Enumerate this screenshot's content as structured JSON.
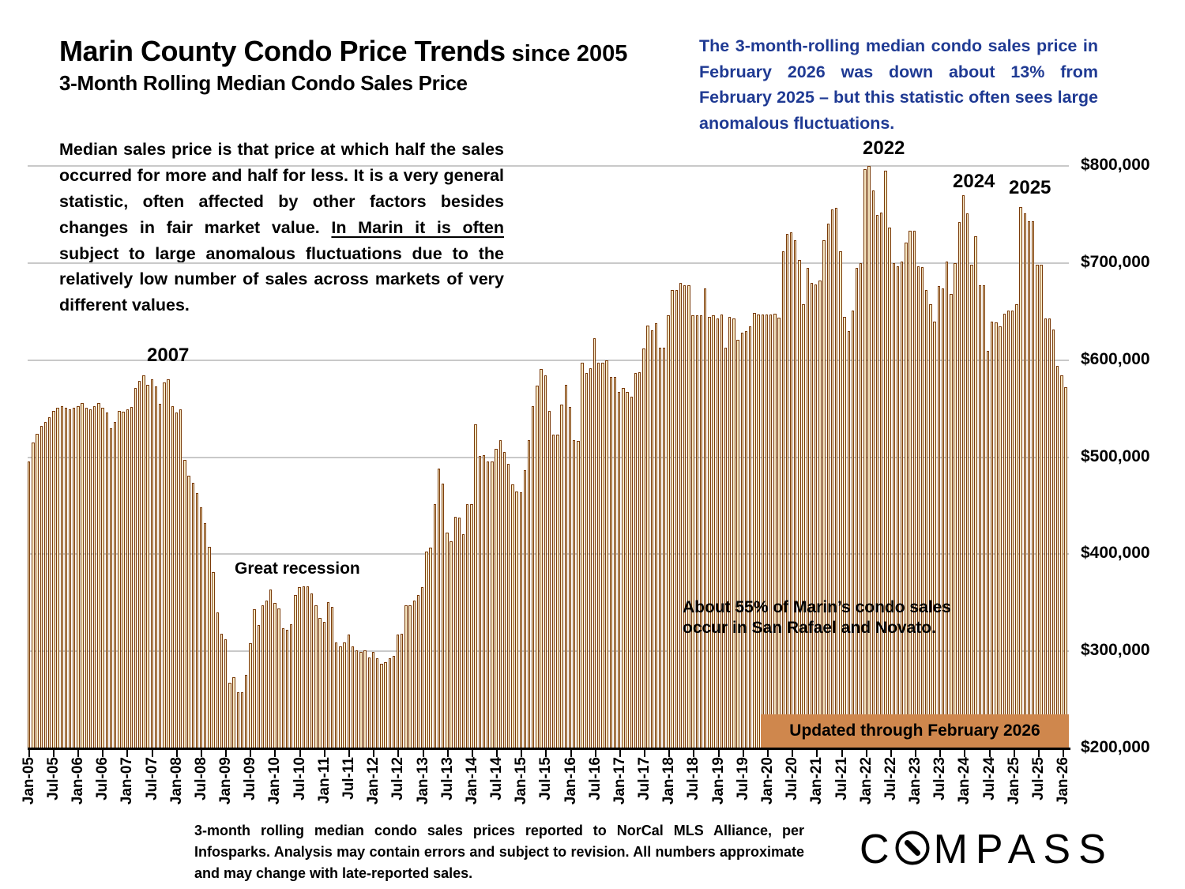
{
  "header": {
    "title_main": "Marin County Condo Price Trends",
    "title_suffix": " since 2005",
    "subtitle": "3-Month Rolling Median Condo Sales Price"
  },
  "callout": {
    "text": "The 3-month-rolling median condo sales price in February 2026 was down about 13% from February 2025 – but this statistic often sees large anomalous fluctuations."
  },
  "description": {
    "pre": "Median sales price is that price at which half the sales occurred for more and half for less. It is a very general statistic, often affected by other factors besides changes in fair market value. ",
    "underlined": "In Marin it is often subject to large  anomalous fluctuations",
    "post": " due to the relatively low number of sales across markets of very different values."
  },
  "annotations": {
    "peak_2007": "2007",
    "recession": "Great recession",
    "peak_2022": "2022",
    "peak_2024": "2024",
    "peak_2025": "2025",
    "share_note": "About 55% of Marin’s condo sales occur in San Rafael and Novato."
  },
  "banner": {
    "text": "Updated through February 2026",
    "color": "#cf874d"
  },
  "footnote": "3-month rolling median condo sales prices reported to NorCal MLS Alliance, per Infosparks. Analysis may contain errors and subject to revision. All numbers approximate and may change with late-reported sales.",
  "logo": {
    "left": "C",
    "right": "MPASS"
  },
  "colors": {
    "bar_fill": "#f7e9c4",
    "bar_border": "#7b3c0b",
    "gridline": "#c9c9c9",
    "callout_blue": "#1f3a93",
    "banner_orange": "#cf874d"
  },
  "chart_data": {
    "type": "bar",
    "title": "3-Month Rolling Median Condo Sales Price",
    "x_start": "Jan-2005",
    "x_end": "Feb-2026",
    "x_frequency": "monthly",
    "values_unit": "USD",
    "ylim": [
      200000,
      810000
    ],
    "grid": "horizontal, every $100,000",
    "y_tick_labels": [
      "$800,000",
      "$700,000",
      "$600,000",
      "$500,000",
      "$400,000",
      "$300,000",
      "$200,000"
    ],
    "y_tick_values": [
      800000,
      700000,
      600000,
      500000,
      400000,
      300000,
      200000
    ],
    "x_tick_labels": [
      "Jan-05",
      "Jul-05",
      "Jan-06",
      "Jul-06",
      "Jan-07",
      "Jul-07",
      "Jan-08",
      "Jul-08",
      "Jan-09",
      "Jul-09",
      "Jan-10",
      "Jul-10",
      "Jan-11",
      "Jul-11",
      "Jan-12",
      "Jul-12",
      "Jan-13",
      "Jul-13",
      "Jan-14",
      "Jul-14",
      "Jan-15",
      "Jul-15",
      "Jan-16",
      "Jul-16",
      "Jan-17",
      "Jul-17",
      "Jan-18",
      "Jul-18",
      "Jan-19",
      "Jul-19",
      "Jan-20",
      "Jul-20",
      "Jan-21",
      "Jul-21",
      "Jan-22",
      "Jul-22",
      "Jan-23",
      "Jul-23",
      "Jan-24",
      "Jul-24",
      "Jan-25",
      "Jul-25",
      "Jan-26"
    ],
    "values": [
      496000,
      515000,
      524000,
      532000,
      536000,
      541000,
      548000,
      551000,
      553000,
      551000,
      549000,
      551000,
      553000,
      556000,
      551000,
      549000,
      553000,
      556000,
      551000,
      546000,
      530000,
      536000,
      548000,
      547000,
      549000,
      552000,
      571000,
      579000,
      584000,
      575000,
      580000,
      573000,
      555000,
      577000,
      580000,
      553000,
      546000,
      549000,
      497000,
      481000,
      474000,
      463000,
      448000,
      432000,
      408000,
      382000,
      340000,
      318000,
      312000,
      268000,
      273000,
      258000,
      258000,
      276000,
      308000,
      343000,
      327000,
      347000,
      352000,
      364000,
      350000,
      344000,
      324000,
      322000,
      328000,
      358000,
      366000,
      367000,
      367000,
      360000,
      347000,
      334000,
      330000,
      351000,
      346000,
      309000,
      305000,
      309000,
      317000,
      305000,
      301000,
      299000,
      301000,
      294000,
      299000,
      293000,
      287000,
      289000,
      293000,
      295000,
      317000,
      318000,
      347000,
      347000,
      352000,
      358000,
      366000,
      403000,
      407000,
      452000,
      488000,
      473000,
      422000,
      413000,
      439000,
      438000,
      421000,
      452000,
      452000,
      534000,
      501000,
      502000,
      496000,
      496000,
      509000,
      518000,
      505000,
      493000,
      472000,
      465000,
      464000,
      487000,
      518000,
      553000,
      574000,
      591000,
      584000,
      548000,
      523000,
      523000,
      554000,
      575000,
      552000,
      518000,
      517000,
      597000,
      587000,
      592000,
      623000,
      597000,
      597000,
      600000,
      583000,
      583000,
      567000,
      571000,
      567000,
      562000,
      587000,
      588000,
      612000,
      636000,
      631000,
      638000,
      613000,
      613000,
      646000,
      672000,
      672000,
      680000,
      677000,
      677000,
      646000,
      646000,
      646000,
      674000,
      645000,
      646000,
      643000,
      647000,
      613000,
      645000,
      643000,
      621000,
      628000,
      630000,
      635000,
      649000,
      647000,
      647000,
      647000,
      647000,
      648000,
      644000,
      712000,
      730000,
      732000,
      724000,
      703000,
      658000,
      695000,
      680000,
      678000,
      682000,
      724000,
      741000,
      755000,
      757000,
      712000,
      645000,
      630000,
      651000,
      695000,
      700000,
      797000,
      800000,
      775000,
      750000,
      752000,
      795000,
      737000,
      700000,
      697000,
      702000,
      721000,
      733000,
      733000,
      697000,
      696000,
      672000,
      658000,
      640000,
      676000,
      674000,
      702000,
      668000,
      700000,
      742000,
      770000,
      751000,
      698000,
      728000,
      677000,
      677000,
      610000,
      640000,
      639000,
      635000,
      648000,
      651000,
      651000,
      658000,
      758000,
      751000,
      743000,
      743000,
      698000,
      698000,
      643000,
      643000,
      632000,
      594000,
      584000,
      572000
    ]
  }
}
